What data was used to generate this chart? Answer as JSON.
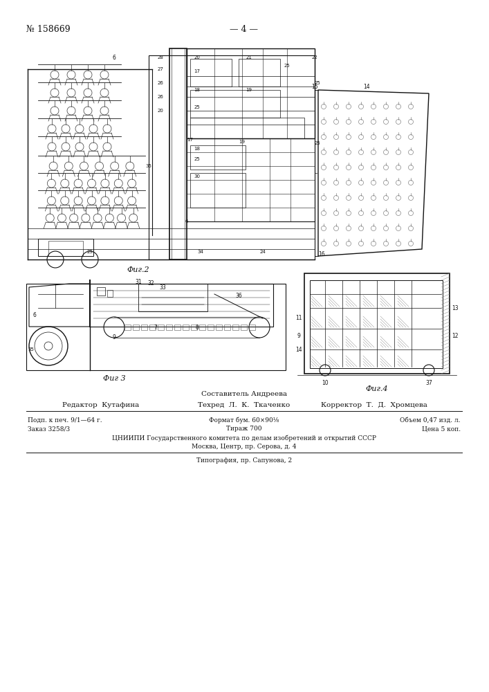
{
  "page_number": "№ 158669",
  "page_label": "— 4 —",
  "fig2_caption": "Фиг.2",
  "fig3_caption": "Фиг 3",
  "fig4_caption": "Фиг.4",
  "footer_line1_center": "Составитель Андреева",
  "footer_line2_left": "Редактор  Кутафина",
  "footer_line2_center": "Техред  Л.  К.  Ткаченко",
  "footer_line2_right": "Корректор  Т.  Д.  Хромцева",
  "footer_line3_left": "Подп. к печ. 9/1—64 г.",
  "footer_line3_center": "Формат бум. 60×90¹⁄₈",
  "footer_line3_right": "Объем 0,47 изд. л.",
  "footer_line4_left": "Заказ 3258/3",
  "footer_line4_center": "Тираж 700",
  "footer_line4_right": "Цена 5 коп.",
  "footer_line5": "ЦНИИПИ Государственного комитета по делам изобретений и открытий СССР",
  "footer_line6": "Москва, Центр, пр. Серова, д. 4",
  "footer_line7": "Типография, пр. Сапунова, 2",
  "bg_color": "#ffffff",
  "text_color": "#111111",
  "line_color": "#111111"
}
